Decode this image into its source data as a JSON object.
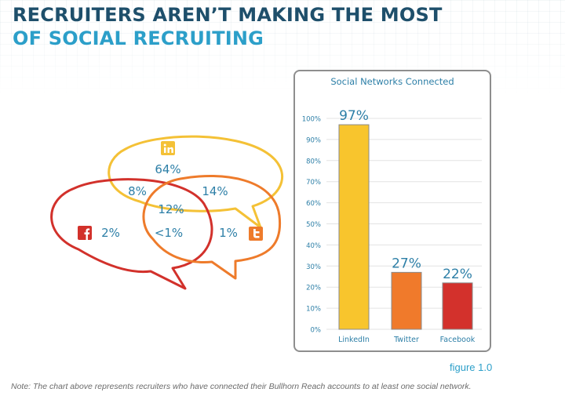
{
  "title": {
    "line1": "RECRUITERS AREN’T MAKING THE MOST",
    "line2": "OF SOCIAL RECRUITING"
  },
  "venn": {
    "linkedin_only": "64%",
    "facebook_only": "2%",
    "twitter_only": "1%",
    "linkedin_facebook": "8%",
    "linkedin_twitter": "14%",
    "all_three": "12%",
    "facebook_twitter": "<1%",
    "colors": {
      "linkedin": "#f4c136",
      "facebook": "#d2312b",
      "twitter": "#ee7b2b"
    },
    "icons": [
      "linkedin-icon",
      "facebook-icon",
      "twitter-icon"
    ]
  },
  "chart_data": {
    "type": "bar",
    "title": "Social Networks Connected",
    "categories": [
      "LinkedIn",
      "Twitter",
      "Facebook"
    ],
    "values": [
      97,
      27,
      22
    ],
    "data_labels": [
      "97%",
      "27%",
      "22%"
    ],
    "colors": [
      "#f8c52d",
      "#f07a2b",
      "#d3312c"
    ],
    "ylim": [
      0,
      100
    ],
    "yticks": [
      "0%",
      "10%",
      "20%",
      "30%",
      "40%",
      "50%",
      "60%",
      "70%",
      "80%",
      "90%",
      "100%"
    ],
    "grid": true
  },
  "figure_caption": "figure 1.0",
  "note": "Note: The chart above represents recruiters who have connected their Bullhorn Reach accounts to at  least one social network."
}
